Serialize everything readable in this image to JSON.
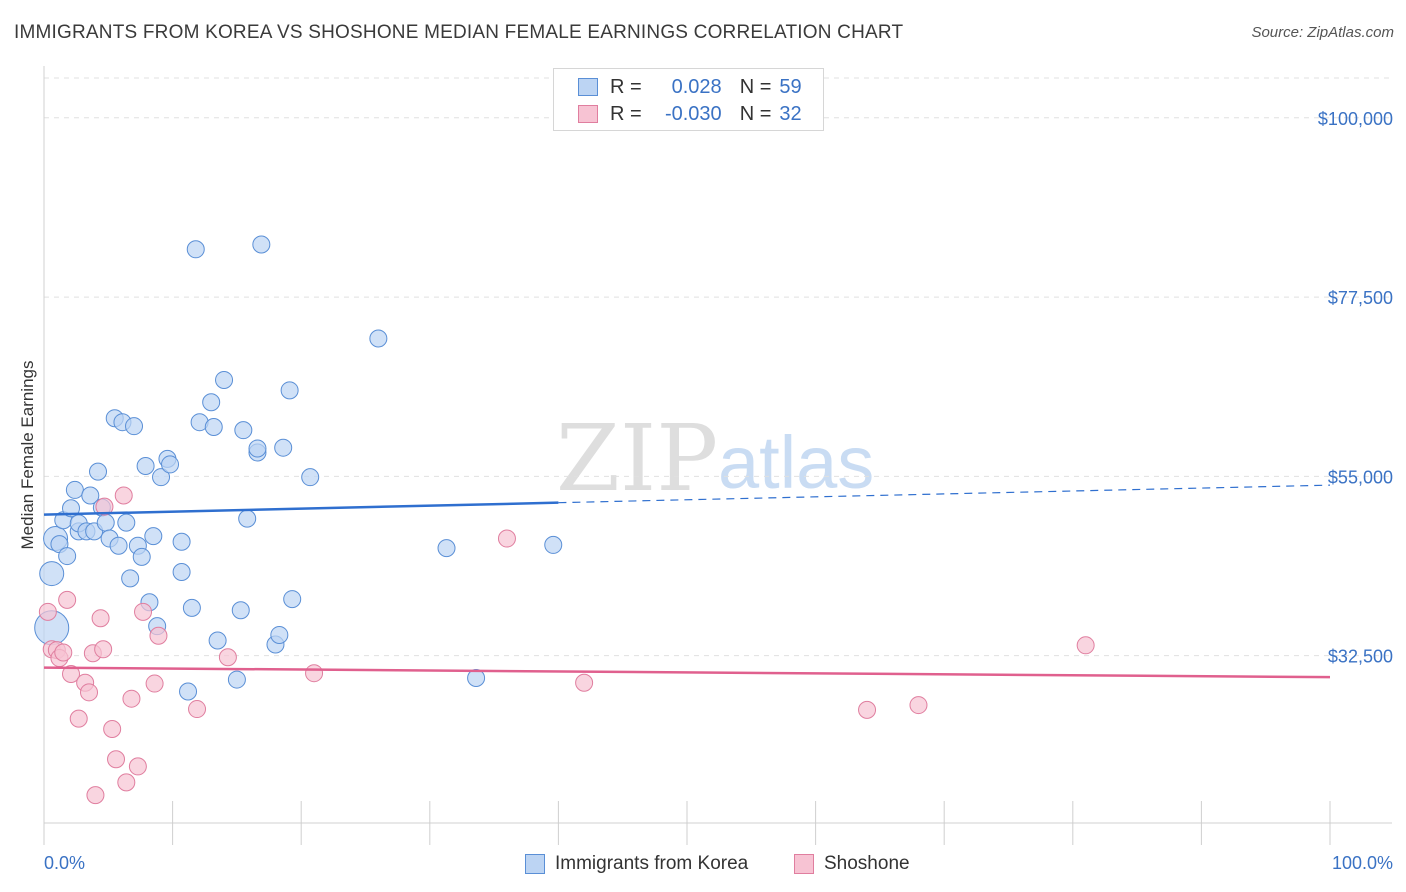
{
  "title": "IMMIGRANTS FROM KOREA VS SHOSHONE MEDIAN FEMALE EARNINGS CORRELATION CHART",
  "source": "Source: ZipAtlas.com",
  "watermark": {
    "zip": "ZIP",
    "atlas": "atlas"
  },
  "legend": {
    "r_label": "R =",
    "n_label": "N =",
    "rows": [
      {
        "r": "0.028",
        "n": "59"
      },
      {
        "r": "-0.030",
        "n": "32"
      }
    ]
  },
  "colors": {
    "korea_fill": "#bcd4f3",
    "korea_stroke": "#5a8fd6",
    "korea_line": "#2f6fcf",
    "shoshone_fill": "#f7c3d3",
    "shoshone_stroke": "#e07e9f",
    "shoshone_line": "#e0608e",
    "axis_label": "#3a72c4",
    "grid": "#e0e0e0"
  },
  "chart_data": {
    "type": "scatter",
    "title": "IMMIGRANTS FROM KOREA VS SHOSHONE MEDIAN FEMALE EARNINGS CORRELATION CHART",
    "xlabel": "",
    "ylabel": "Median Female Earnings",
    "xlim": [
      0,
      100
    ],
    "ylim": [
      11500,
      106000
    ],
    "x_tick_labels": [
      "0.0%",
      "100.0%"
    ],
    "y_ticks": [
      32500,
      55000,
      77500,
      100000
    ],
    "y_tick_labels": [
      "$32,500",
      "$55,000",
      "$77,500",
      "$100,000"
    ],
    "series": [
      {
        "name": "Immigrants from Korea",
        "r": 0.028,
        "n": 59,
        "trend": {
          "x": [
            0,
            40
          ],
          "y": [
            50200,
            51700
          ],
          "dashed_to": [
            100,
            53900
          ]
        },
        "points": [
          {
            "x": 0.6,
            "y": 36000,
            "s": "xl"
          },
          {
            "x": 0.6,
            "y": 42800,
            "s": "l"
          },
          {
            "x": 0.9,
            "y": 47200,
            "s": "l"
          },
          {
            "x": 1.2,
            "y": 46500
          },
          {
            "x": 1.5,
            "y": 49500
          },
          {
            "x": 1.8,
            "y": 45000
          },
          {
            "x": 2.1,
            "y": 51000
          },
          {
            "x": 2.4,
            "y": 53300
          },
          {
            "x": 2.7,
            "y": 48100
          },
          {
            "x": 2.7,
            "y": 49100
          },
          {
            "x": 3.3,
            "y": 48100
          },
          {
            "x": 3.6,
            "y": 52600
          },
          {
            "x": 3.9,
            "y": 48100
          },
          {
            "x": 4.2,
            "y": 55600
          },
          {
            "x": 4.5,
            "y": 51100
          },
          {
            "x": 4.8,
            "y": 49200
          },
          {
            "x": 5.1,
            "y": 47200
          },
          {
            "x": 5.5,
            "y": 62300
          },
          {
            "x": 5.8,
            "y": 46300
          },
          {
            "x": 6.1,
            "y": 61800
          },
          {
            "x": 6.4,
            "y": 49200
          },
          {
            "x": 6.7,
            "y": 42200
          },
          {
            "x": 7.0,
            "y": 61300
          },
          {
            "x": 7.3,
            "y": 46300
          },
          {
            "x": 7.6,
            "y": 44900
          },
          {
            "x": 7.9,
            "y": 56300
          },
          {
            "x": 8.2,
            "y": 39200
          },
          {
            "x": 8.5,
            "y": 47500
          },
          {
            "x": 8.8,
            "y": 36200
          },
          {
            "x": 9.1,
            "y": 54900
          },
          {
            "x": 9.6,
            "y": 57200
          },
          {
            "x": 9.8,
            "y": 56500
          },
          {
            "x": 10.7,
            "y": 43000
          },
          {
            "x": 10.7,
            "y": 46800
          },
          {
            "x": 11.2,
            "y": 28000
          },
          {
            "x": 11.5,
            "y": 38500
          },
          {
            "x": 11.8,
            "y": 83500
          },
          {
            "x": 12.1,
            "y": 61800
          },
          {
            "x": 13.0,
            "y": 64300
          },
          {
            "x": 13.2,
            "y": 61200
          },
          {
            "x": 13.5,
            "y": 34400
          },
          {
            "x": 14.0,
            "y": 67100
          },
          {
            "x": 15.0,
            "y": 29500
          },
          {
            "x": 15.3,
            "y": 38200
          },
          {
            "x": 15.5,
            "y": 60800
          },
          {
            "x": 15.8,
            "y": 49700
          },
          {
            "x": 16.6,
            "y": 58000
          },
          {
            "x": 16.6,
            "y": 58500
          },
          {
            "x": 16.9,
            "y": 84100
          },
          {
            "x": 18.0,
            "y": 33900
          },
          {
            "x": 18.3,
            "y": 35100
          },
          {
            "x": 18.6,
            "y": 58600
          },
          {
            "x": 19.1,
            "y": 65800
          },
          {
            "x": 19.3,
            "y": 39600
          },
          {
            "x": 20.7,
            "y": 54900
          },
          {
            "x": 26.0,
            "y": 72300
          },
          {
            "x": 31.3,
            "y": 46000
          },
          {
            "x": 33.6,
            "y": 29700
          },
          {
            "x": 39.6,
            "y": 46400
          }
        ]
      },
      {
        "name": "Shoshone",
        "r": -0.03,
        "n": 32,
        "trend": {
          "x": [
            0,
            100
          ],
          "y": [
            31000,
            29800
          ]
        },
        "points": [
          {
            "x": 0.3,
            "y": 38000
          },
          {
            "x": 0.6,
            "y": 33300
          },
          {
            "x": 1.0,
            "y": 33200
          },
          {
            "x": 1.2,
            "y": 32200
          },
          {
            "x": 1.5,
            "y": 32900
          },
          {
            "x": 1.8,
            "y": 39500
          },
          {
            "x": 2.1,
            "y": 30200
          },
          {
            "x": 2.7,
            "y": 24600
          },
          {
            "x": 3.2,
            "y": 29100
          },
          {
            "x": 3.5,
            "y": 27900
          },
          {
            "x": 3.8,
            "y": 32800
          },
          {
            "x": 4.0,
            "y": 15000
          },
          {
            "x": 4.4,
            "y": 37200
          },
          {
            "x": 4.6,
            "y": 33300
          },
          {
            "x": 4.7,
            "y": 51200
          },
          {
            "x": 5.3,
            "y": 23300
          },
          {
            "x": 5.6,
            "y": 19500
          },
          {
            "x": 6.2,
            "y": 52600
          },
          {
            "x": 6.4,
            "y": 16600
          },
          {
            "x": 6.8,
            "y": 27100
          },
          {
            "x": 7.3,
            "y": 18600
          },
          {
            "x": 7.7,
            "y": 38000
          },
          {
            "x": 8.6,
            "y": 29000
          },
          {
            "x": 8.9,
            "y": 35000
          },
          {
            "x": 11.9,
            "y": 25800
          },
          {
            "x": 14.3,
            "y": 32300
          },
          {
            "x": 21.0,
            "y": 30300
          },
          {
            "x": 36.0,
            "y": 47200
          },
          {
            "x": 42.0,
            "y": 29100
          },
          {
            "x": 64.0,
            "y": 25700
          },
          {
            "x": 68.0,
            "y": 26300
          },
          {
            "x": 81.0,
            "y": 33800
          }
        ]
      }
    ]
  }
}
